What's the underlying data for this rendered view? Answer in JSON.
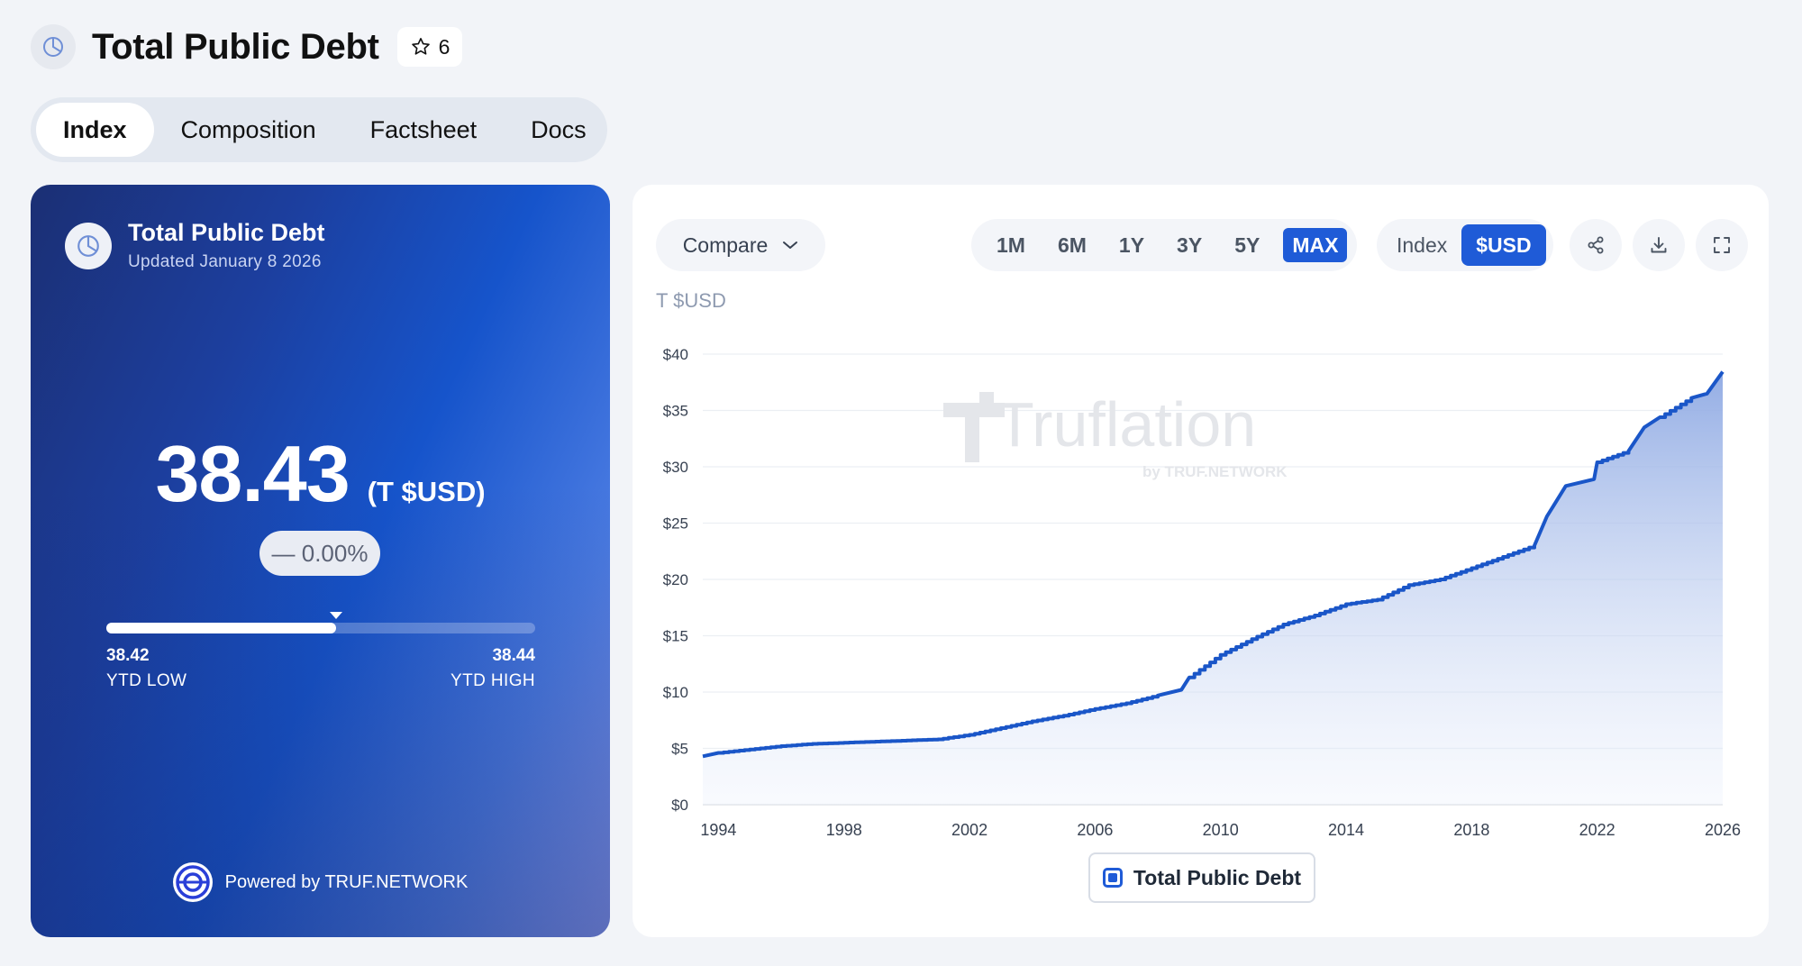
{
  "header": {
    "title": "Total Public Debt",
    "star_count": "6",
    "icon": "pie-chart-icon"
  },
  "tabs": [
    {
      "label": "Index",
      "active": true
    },
    {
      "label": "Composition",
      "active": false
    },
    {
      "label": "Factsheet",
      "active": false
    },
    {
      "label": "Docs",
      "active": false
    }
  ],
  "summary": {
    "title": "Total Public Debt",
    "updated": "Updated January 8 2026",
    "value": "38.43",
    "unit": "(T $USD)",
    "change": "— 0.00%",
    "ytd_low_value": "38.42",
    "ytd_low_label": "YTD LOW",
    "ytd_high_value": "38.44",
    "ytd_high_label": "YTD HIGH",
    "ytd_position": 0.535,
    "powered_by": "Powered by TRUF.NETWORK"
  },
  "toolbar": {
    "compare_label": "Compare",
    "ranges": [
      {
        "label": "1M",
        "active": false
      },
      {
        "label": "6M",
        "active": false
      },
      {
        "label": "1Y",
        "active": false
      },
      {
        "label": "3Y",
        "active": false
      },
      {
        "label": "5Y",
        "active": false
      },
      {
        "label": "MAX",
        "active": true
      }
    ],
    "modes": [
      {
        "label": "Index",
        "active": false
      },
      {
        "label": "$USD",
        "active": true
      }
    ],
    "icons": [
      "share-icon",
      "download-icon",
      "fullscreen-icon"
    ]
  },
  "colors": {
    "accent": "#1f5bd7",
    "line": "#1a56c8",
    "area": "#9db5e8"
  },
  "chart_data": {
    "type": "area",
    "ylabel": "T $USD",
    "ylim": [
      0,
      40
    ],
    "xlim": [
      1993.5,
      2026.0
    ],
    "yticks": [
      "$0",
      "$5",
      "$10",
      "$15",
      "$20",
      "$25",
      "$30",
      "$35",
      "$40"
    ],
    "ytick_values": [
      0,
      5,
      10,
      15,
      20,
      25,
      30,
      35,
      40
    ],
    "xticks": [
      "1994",
      "1998",
      "2002",
      "2006",
      "2010",
      "2014",
      "2018",
      "2022",
      "2026"
    ],
    "xtick_values": [
      1994,
      1998,
      2002,
      2006,
      2010,
      2014,
      2018,
      2022,
      2026
    ],
    "grid": true,
    "legend": "bottom-center",
    "series": [
      {
        "name": "Total Public Debt",
        "x": [
          1993.5,
          1994,
          1995,
          1996,
          1997,
          1998,
          1999,
          2000,
          2001,
          2002,
          2003,
          2004,
          2005,
          2006,
          2007,
          2008,
          2008.75,
          2009,
          2010,
          2011,
          2012,
          2013,
          2014,
          2015,
          2016,
          2017,
          2018,
          2019,
          2020,
          2020.4,
          2020.6,
          2021,
          2021.9,
          2022,
          2023,
          2023.5,
          2024,
          2025,
          2025.5,
          2026
        ],
        "y": [
          4.3,
          4.6,
          4.9,
          5.2,
          5.4,
          5.5,
          5.6,
          5.7,
          5.8,
          6.2,
          6.8,
          7.4,
          7.9,
          8.5,
          9.0,
          9.7,
          10.2,
          11.3,
          13.3,
          14.7,
          16.0,
          16.8,
          17.8,
          18.2,
          19.5,
          20.0,
          21.0,
          22.0,
          23.0,
          25.6,
          26.5,
          28.3,
          28.9,
          30.4,
          31.4,
          33.5,
          34.4,
          36.1,
          36.5,
          38.43
        ]
      }
    ],
    "watermark": "Truflation",
    "watermark_sub": "by TRUF.NETWORK"
  }
}
